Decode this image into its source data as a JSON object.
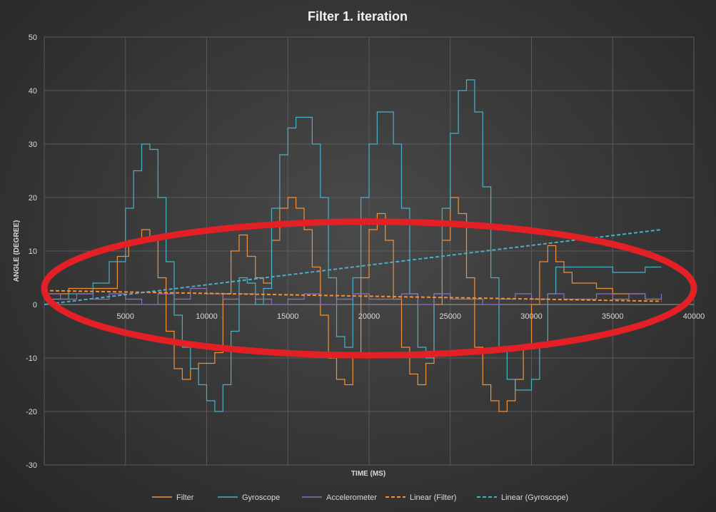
{
  "chart_data": {
    "type": "line",
    "title": "Filter  1. iteration",
    "xlabel": "TIME (MS)",
    "ylabel": "ANGLE (DEGREE)",
    "xlim": [
      0,
      40000
    ],
    "ylim": [
      -30,
      50
    ],
    "x_ticks": [
      5000,
      10000,
      15000,
      20000,
      25000,
      30000,
      35000,
      40000
    ],
    "y_ticks": [
      -30,
      -20,
      -10,
      0,
      10,
      20,
      30,
      40,
      50
    ],
    "grid": true,
    "legend_position": "bottom",
    "annotation": {
      "type": "red-ellipse",
      "color": "#e32026",
      "center": [
        20000,
        3
      ],
      "radii": [
        20000,
        12.5
      ]
    },
    "series": [
      {
        "name": "Filter",
        "color": "#f0913a",
        "style": "solid",
        "x": [
          0,
          1500,
          3000,
          4500,
          5200,
          6000,
          6500,
          7000,
          7500,
          8000,
          8500,
          9000,
          9500,
          10000,
          10500,
          11000,
          11500,
          12000,
          12500,
          13000,
          13500,
          14000,
          14500,
          15000,
          15500,
          16000,
          16500,
          17000,
          17500,
          18000,
          18500,
          19000,
          19500,
          20000,
          20500,
          21000,
          21500,
          22000,
          22500,
          23000,
          23500,
          24000,
          24500,
          25000,
          25500,
          26000,
          26500,
          27000,
          27500,
          28000,
          28500,
          29000,
          29500,
          30000,
          30500,
          31000,
          31500,
          32000,
          32500,
          33000,
          34000,
          35000,
          36000,
          37000,
          38000
        ],
        "values": [
          2,
          3,
          3,
          9,
          12,
          14,
          12,
          5,
          -5,
          -12,
          -14,
          -12,
          -11,
          -11,
          -9,
          2,
          10,
          13,
          9,
          5,
          4,
          12,
          18,
          20,
          18,
          14,
          7,
          -2,
          -10,
          -14,
          -15,
          -9,
          5,
          14,
          17,
          12,
          1,
          -8,
          -13,
          -15,
          -11,
          0,
          12,
          20,
          17,
          5,
          -8,
          -15,
          -18,
          -20,
          -18,
          -14,
          -8,
          0,
          8,
          11,
          8,
          6,
          4,
          4,
          3,
          2,
          2,
          1,
          1
        ]
      },
      {
        "name": "Gyroscope",
        "color": "#4bafc8",
        "style": "solid",
        "x": [
          0,
          1500,
          3000,
          4000,
          5000,
          5500,
          6000,
          6500,
          7000,
          7500,
          8000,
          8500,
          9000,
          9500,
          10000,
          10500,
          11000,
          11500,
          12000,
          12500,
          13000,
          13500,
          14000,
          14500,
          15000,
          15500,
          16000,
          16500,
          17000,
          17500,
          18000,
          18500,
          19000,
          19500,
          20000,
          20500,
          21000,
          21500,
          22000,
          22500,
          23000,
          23500,
          24000,
          24500,
          25000,
          25500,
          26000,
          26500,
          27000,
          27500,
          28000,
          28500,
          29000,
          29500,
          30000,
          30500,
          31000,
          31500,
          32000,
          33000,
          34000,
          35000,
          36000,
          37000,
          38000
        ],
        "values": [
          1,
          2,
          4,
          8,
          18,
          25,
          30,
          29,
          20,
          8,
          -2,
          -8,
          -12,
          -15,
          -18,
          -20,
          -15,
          -5,
          5,
          4,
          0,
          3,
          18,
          28,
          33,
          35,
          35,
          30,
          20,
          5,
          -6,
          -8,
          5,
          20,
          30,
          36,
          36,
          30,
          18,
          2,
          -8,
          -10,
          2,
          18,
          32,
          40,
          42,
          36,
          22,
          5,
          -8,
          -14,
          -16,
          -16,
          -14,
          -8,
          2,
          7,
          7,
          7,
          7,
          6,
          6,
          7,
          7
        ]
      },
      {
        "name": "Accelerometer",
        "color": "#8e6fc1",
        "style": "solid",
        "x": [
          0,
          1000,
          2000,
          3000,
          4000,
          5000,
          6000,
          7000,
          8000,
          9000,
          10000,
          11000,
          12000,
          13000,
          14000,
          15000,
          16000,
          17000,
          18000,
          19000,
          20000,
          21000,
          22000,
          23000,
          24000,
          25000,
          26000,
          27000,
          28000,
          29000,
          30000,
          31000,
          32000,
          33000,
          34000,
          35000,
          36000,
          37000,
          38000
        ],
        "values": [
          2,
          1,
          2,
          1,
          2,
          1,
          0,
          2,
          1,
          3,
          2,
          1,
          2,
          1,
          0,
          1,
          2,
          0,
          1,
          2,
          1,
          1,
          2,
          0,
          2,
          1,
          1,
          0,
          1,
          2,
          1,
          2,
          1,
          1,
          2,
          1,
          2,
          1,
          2
        ]
      },
      {
        "name": "Linear (Filter)",
        "color": "#f0913a",
        "style": "dashed",
        "x": [
          0,
          38000
        ],
        "values": [
          2.6,
          0.6
        ]
      },
      {
        "name": "Linear (Gyroscope)",
        "color": "#4bafc8",
        "style": "dashed",
        "x": [
          0,
          38000
        ],
        "values": [
          0,
          14
        ]
      }
    ]
  }
}
